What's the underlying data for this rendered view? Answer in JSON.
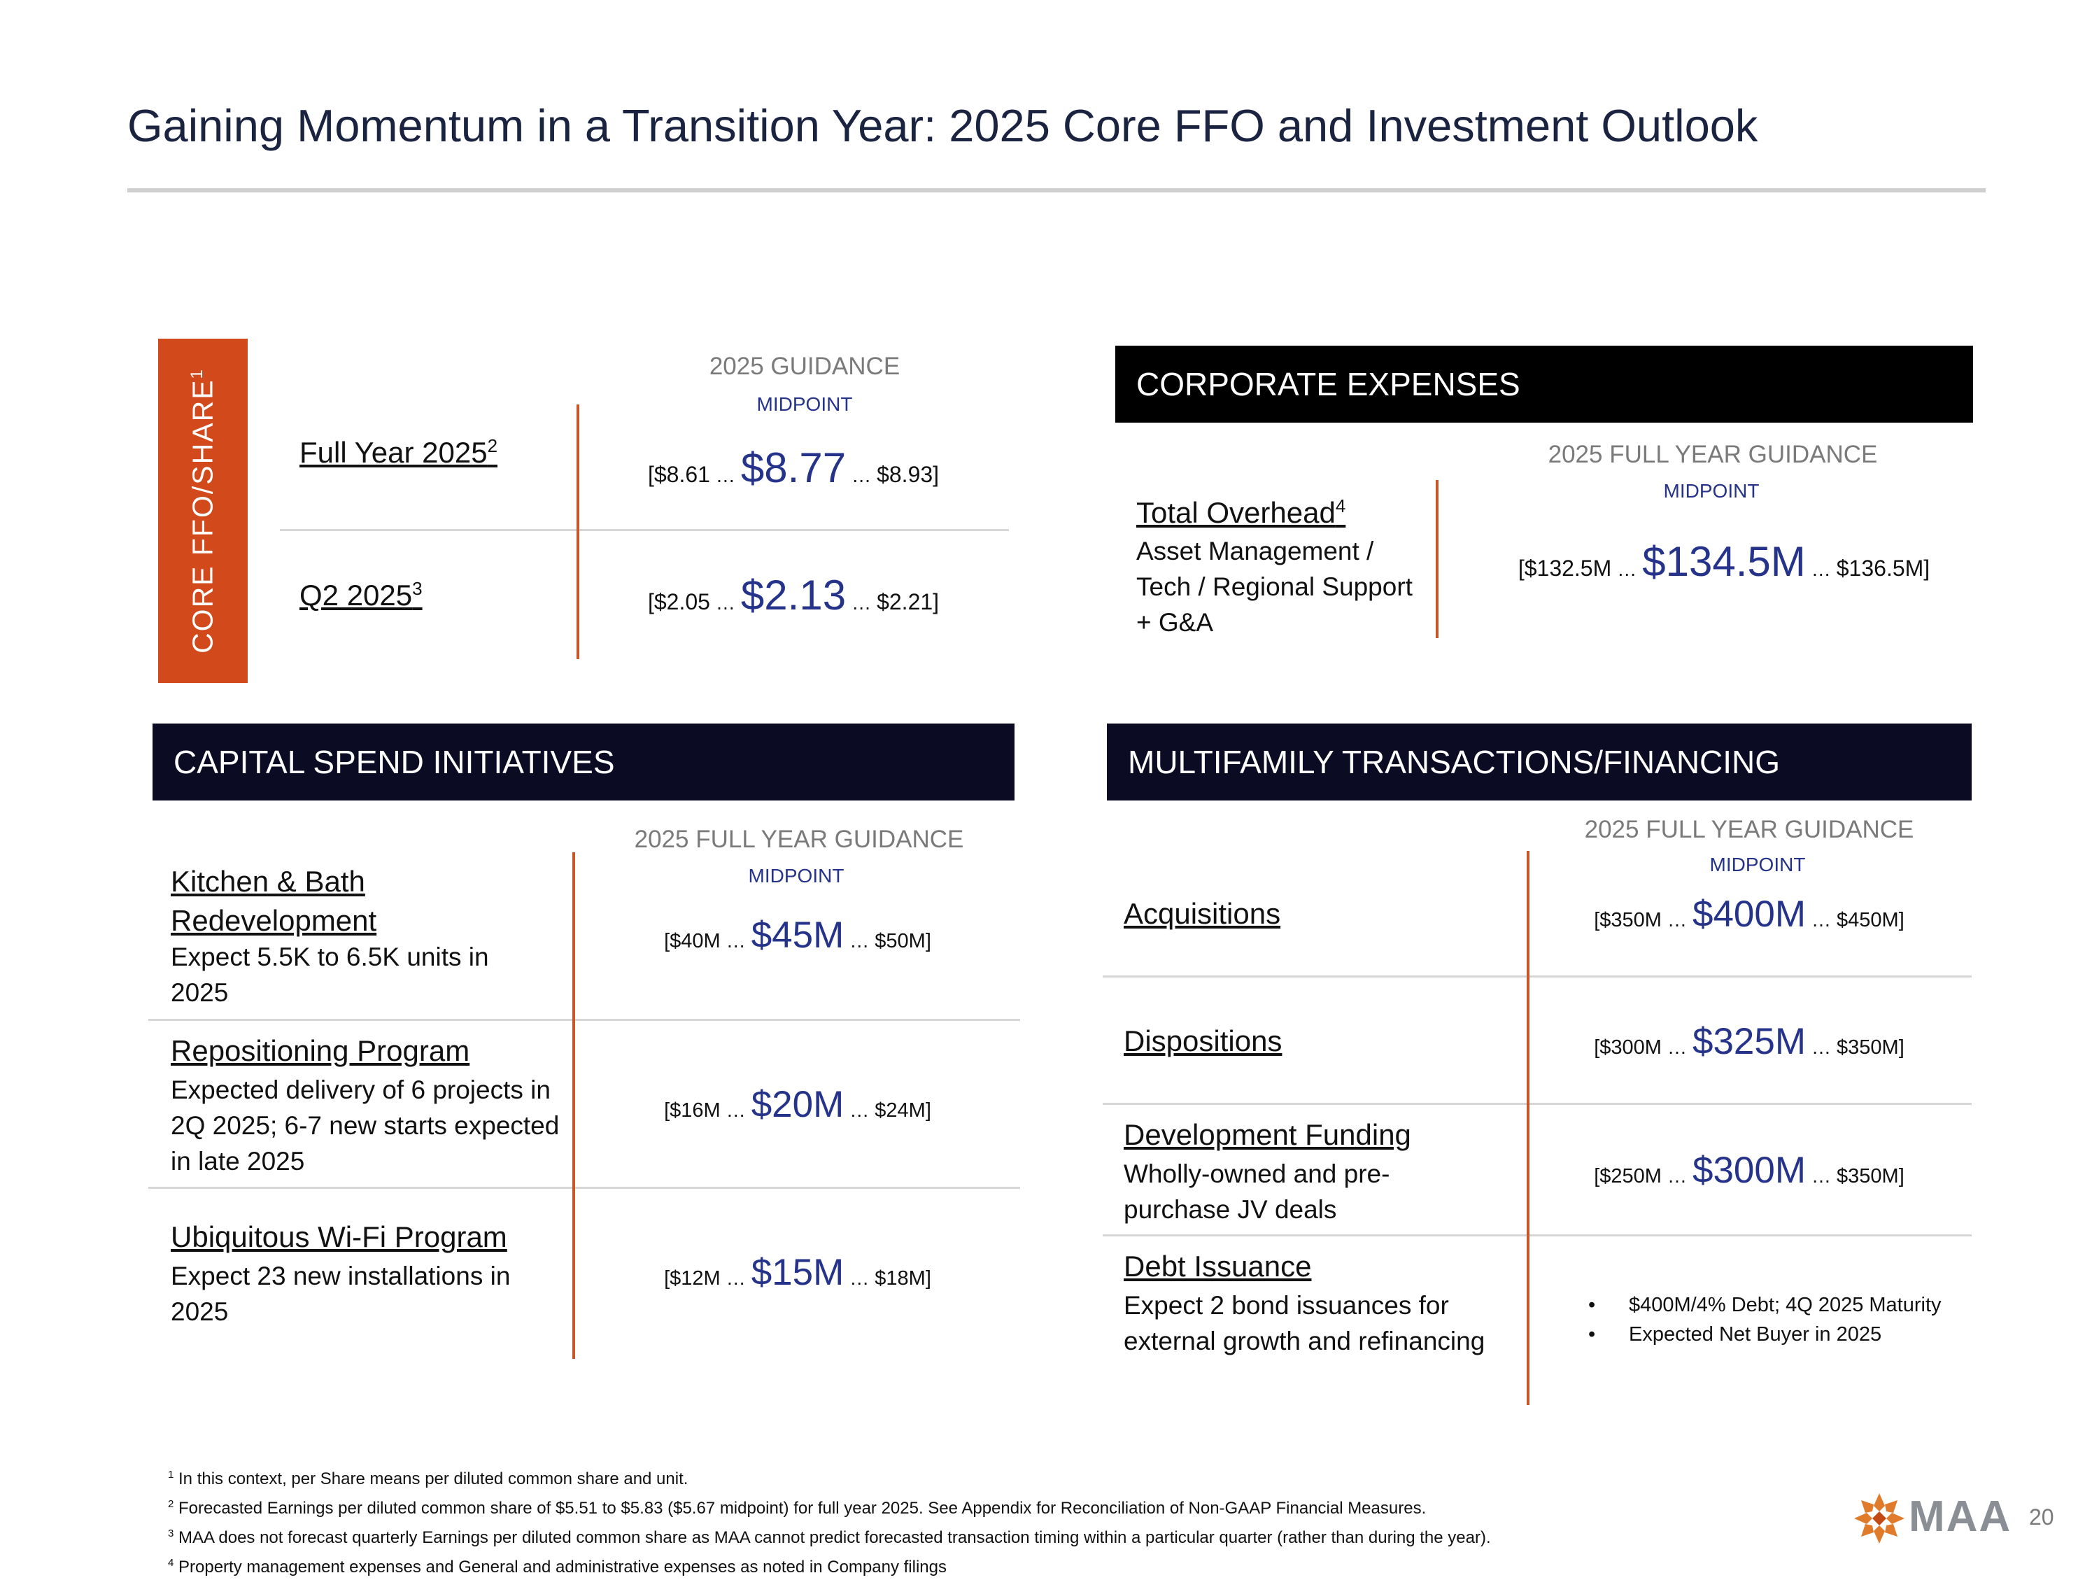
{
  "title": "Gaining Momentum in a Transition Year: 2025 Core FFO and Investment Outlook",
  "core_ffo": {
    "band_label": "CORE FFO/SHARE",
    "band_sup": "1",
    "header": "2025 GUIDANCE",
    "subheader": "MIDPOINT",
    "rows": [
      {
        "label": "Full Year 2025",
        "sup": "2",
        "low": "[$8.61",
        "mid": "$8.77",
        "high": "$8.93]"
      },
      {
        "label": "Q2 2025",
        "sup": "3",
        "low": "[$2.05",
        "mid": "$2.13",
        "high": "$2.21]"
      }
    ]
  },
  "corporate": {
    "banner": "CORPORATE EXPENSES",
    "header": "2025 FULL YEAR GUIDANCE",
    "subheader": "MIDPOINT",
    "label": "Total Overhead",
    "sup": "4",
    "desc": "Asset Management / Tech / Regional Support + G&A",
    "low": "[$132.5M",
    "mid": "$134.5M",
    "high": "$136.5M]"
  },
  "capital": {
    "banner": "CAPITAL SPEND INITIATIVES",
    "header": "2025 FULL YEAR GUIDANCE",
    "subheader": "MIDPOINT",
    "rows": [
      {
        "label": "Kitchen & Bath Redevelopment",
        "desc": "Expect 5.5K to 6.5K units in 2025",
        "low": "[$40M",
        "mid": "$45M",
        "high": "$50M]"
      },
      {
        "label": "Repositioning Program",
        "desc": "Expected delivery of 6 projects in 2Q 2025; 6-7 new starts expected in late 2025",
        "low": "[$16M",
        "mid": "$20M",
        "high": "$24M]"
      },
      {
        "label": "Ubiquitous Wi-Fi Program",
        "desc": "Expect 23 new installations in 2025",
        "low": "[$12M",
        "mid": "$15M",
        "high": "$18M]"
      }
    ]
  },
  "multifamily": {
    "banner": "MULTIFAMILY TRANSACTIONS/FINANCING",
    "header": "2025 FULL YEAR GUIDANCE",
    "subheader": "MIDPOINT",
    "rows": [
      {
        "label": "Acquisitions",
        "desc": "",
        "low": "[$350M",
        "mid": "$400M",
        "high": "$450M]"
      },
      {
        "label": "Dispositions",
        "desc": "",
        "low": "[$300M",
        "mid": "$325M",
        "high": "$350M]"
      },
      {
        "label": "Development Funding",
        "desc": "Wholly-owned and pre-purchase JV deals",
        "low": "[$250M",
        "mid": "$300M",
        "high": "$350M]"
      }
    ],
    "debt": {
      "label": "Debt Issuance",
      "desc": "Expect 2 bond issuances for external growth and refinancing",
      "bullets": [
        "$400M/4% Debt; 4Q 2025 Maturity",
        "Expected Net Buyer in 2025"
      ]
    }
  },
  "dots": "…",
  "bullet_char": "•",
  "footnotes": [
    {
      "num": "1",
      "text": "In this context, per Share means per diluted common share and unit."
    },
    {
      "num": "2",
      "text": "Forecasted Earnings per diluted common share of $5.51 to $5.83 ($5.67 midpoint) for full year 2025. See Appendix for Reconciliation of Non-GAAP Financial Measures."
    },
    {
      "num": "3",
      "text": "MAA does not forecast quarterly Earnings per diluted common share as MAA cannot predict forecasted transaction timing within a particular quarter (rather than during the year)."
    },
    {
      "num": "4",
      "text": "Property management expenses and General and administrative expenses as noted in Company filings"
    }
  ],
  "logo": "MAA",
  "page_number": "20",
  "colors": {
    "accent_orange": "#d2491b",
    "midpoint_blue": "#25338a",
    "navy": "#0b0c24",
    "title": "#1a2340"
  }
}
